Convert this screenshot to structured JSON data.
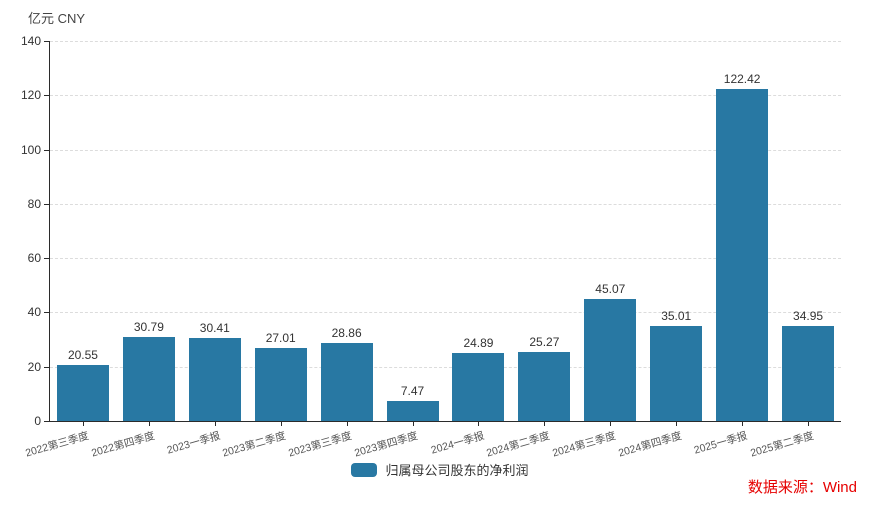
{
  "header": {
    "unit_label": "亿元 CNY"
  },
  "chart_data": {
    "type": "bar",
    "title": "",
    "categories": [
      "2022第三季度",
      "2022第四季度",
      "2023一季报",
      "2023第二季度",
      "2023第三季度",
      "2023第四季度",
      "2024一季报",
      "2024第二季度",
      "2024第三季度",
      "2024第四季度",
      "2025一季报",
      "2025第二季度"
    ],
    "series": [
      {
        "name": "归属母公司股东的净利润",
        "values": [
          20.55,
          30.79,
          30.41,
          27.01,
          28.86,
          7.47,
          24.89,
          25.27,
          45.07,
          35.01,
          122.42,
          34.95
        ]
      }
    ],
    "value_labels": [
      "20.55",
      "30.79",
      "30.41",
      "27.01",
      "28.86",
      "7.47",
      "24.89",
      "25.27",
      "45.07",
      "35.01",
      "122.42",
      "34.95"
    ],
    "xlabel": "",
    "ylabel": "亿元 CNY",
    "ylim": [
      0,
      140
    ],
    "yticks": [
      0,
      20,
      40,
      60,
      80,
      100,
      120,
      140
    ],
    "grid": true,
    "gridline_style": "dashed",
    "legend_position": "bottom",
    "bar_color": "#2878a3"
  },
  "legend": {
    "label": "归属母公司股东的净利润"
  },
  "source": {
    "text": "数据来源：Wind",
    "color": "#e60000"
  }
}
